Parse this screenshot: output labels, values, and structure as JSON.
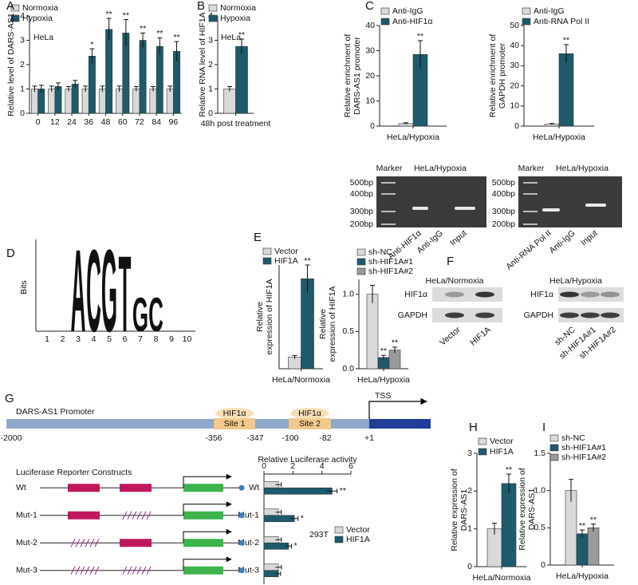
{
  "chart_data": [
    {
      "type": "bar",
      "panel": "A",
      "ylabel": [
        "Relative level of DARS-AS1"
      ],
      "note": "HeLa",
      "categories": [
        "0",
        "12",
        "24",
        "36",
        "48",
        "60",
        "72",
        "84",
        "96"
      ],
      "series": [
        {
          "name": "Normoxia",
          "color": "#d9d9d9",
          "values": [
            1,
            1,
            1,
            1,
            1,
            1,
            1,
            1,
            1
          ],
          "errors": [
            0.12,
            0.12,
            0.1,
            0.12,
            0.12,
            0.12,
            0.1,
            0.1,
            0.12
          ]
        },
        {
          "name": "Hypoxia",
          "color": "#1d5a6c",
          "values": [
            1.0,
            1.1,
            1.2,
            2.35,
            3.45,
            3.3,
            3.0,
            2.75,
            2.55
          ],
          "errors": [
            0.15,
            0.15,
            0.15,
            0.3,
            0.45,
            0.55,
            0.3,
            0.35,
            0.4
          ],
          "annotations": [
            null,
            null,
            null,
            "*",
            "**",
            "**",
            "**",
            "**",
            "**"
          ]
        }
      ],
      "ylim": [
        0,
        4
      ],
      "yticks": [
        0,
        1,
        2,
        3,
        4
      ]
    },
    {
      "type": "bar",
      "panel": "B",
      "ylabel": [
        "Relative RNA level of HIF1A"
      ],
      "note": "HeLa",
      "xlabel": "48h post treatment",
      "categories": [
        null
      ],
      "series": [
        {
          "name": "Normoxia",
          "color": "#d9d9d9",
          "values": [
            1.0
          ],
          "errors": [
            0.1
          ]
        },
        {
          "name": "Hypoxia",
          "color": "#1d5a6c",
          "values": [
            2.75
          ],
          "errors": [
            0.3
          ],
          "annotations": [
            "**"
          ]
        }
      ],
      "ylim": [
        0,
        4
      ],
      "yticks": [
        0,
        1,
        2,
        3,
        4
      ]
    },
    {
      "type": "bar",
      "panel": "C",
      "ylabel": [
        "Relative enrichment of",
        "DARS-AS1 promoter"
      ],
      "xlabel": "HeLa/Hypoxia",
      "categories": [
        null
      ],
      "series": [
        {
          "name": "Anti-IgG",
          "color": "#d9d9d9",
          "values": [
            1
          ],
          "errors": [
            0.3
          ]
        },
        {
          "name": "Anti-HIF1α",
          "color": "#1d5a6c",
          "values": [
            28.5
          ],
          "errors": [
            5.5
          ],
          "annotations": [
            "**"
          ]
        }
      ],
      "ylim": [
        0,
        40
      ],
      "yticks": [
        0,
        10,
        20,
        30,
        40
      ]
    },
    {
      "type": "bar",
      "ylabel": [
        "Relative enrichment of",
        "GAPDH promoter"
      ],
      "xlabel": "HeLa/Hypoxia",
      "categories": [
        null
      ],
      "series": [
        {
          "name": "Anti-IgG",
          "color": "#d9d9d9",
          "values": [
            1
          ],
          "errors": [
            0.3
          ]
        },
        {
          "name": "Anti-RNA Pol II",
          "color": "#1d5a6c",
          "values": [
            36
          ],
          "errors": [
            4.5
          ],
          "annotations": [
            "**"
          ]
        }
      ],
      "ylim": [
        0,
        50
      ],
      "yticks": [
        0,
        10,
        20,
        30,
        40,
        50
      ]
    },
    {
      "type": "bar",
      "panel": "E",
      "ylabel": [
        "Relative",
        "expression of HIF1A"
      ],
      "xlabel": "HeLa/Normoxia",
      "categories": [
        null
      ],
      "series": [
        {
          "name": "Vector",
          "color": "#d9d9d9",
          "values": [
            1
          ],
          "errors": [
            0.15
          ]
        },
        {
          "name": "HIF1A",
          "color": "#1d5a6c",
          "values": [
            7.8
          ],
          "errors": [
            1.2
          ],
          "annotations": [
            "**"
          ]
        }
      ],
      "ylim": [
        0,
        9
      ]
    },
    {
      "type": "bar",
      "ylabel": [
        "Relative",
        "expression of HIF1A"
      ],
      "xlabel": "HeLa/Hypoxia",
      "categories": [
        null
      ],
      "series": [
        {
          "name": "sh-NC",
          "color": "#d9d9d9",
          "values": [
            1
          ],
          "errors": [
            0.12
          ]
        },
        {
          "name": "sh-HIF1A#1",
          "color": "#1d5a6c",
          "values": [
            0.15
          ],
          "errors": [
            0.03
          ],
          "annotations": [
            "**"
          ]
        },
        {
          "name": "sh-HIF1A#2",
          "color": "#9a9a9a",
          "values": [
            0.25
          ],
          "errors": [
            0.04
          ],
          "annotations": [
            "**"
          ]
        }
      ],
      "ylim": [
        0,
        1.2
      ],
      "yticks": [
        {
          "value": 0,
          "label": "0.0"
        },
        0.5,
        {
          "value": 1,
          "label": "1.0"
        }
      ]
    },
    {
      "type": "hbar",
      "title": "Relative Luciferase activity",
      "note": "293T",
      "categories": [
        "Wt",
        "Mut-1",
        "Mut-2",
        "Mut-3"
      ],
      "series": [
        {
          "name": "Vector",
          "color": "#d9d9d9",
          "values": [
            1,
            1,
            1,
            1
          ],
          "errors": [
            0.2,
            0.2,
            0.2,
            0.2
          ]
        },
        {
          "name": "HIF1A",
          "color": "#1d5a6c",
          "values": [
            4.7,
            2.1,
            1.7,
            1.0
          ],
          "errors": [
            0.35,
            0.25,
            0.2,
            0.15
          ],
          "annotations": [
            "**",
            "*",
            "*",
            null
          ]
        }
      ],
      "xlim": [
        0,
        6
      ],
      "xticks": [
        0,
        2,
        4,
        6
      ]
    },
    {
      "type": "bar",
      "panel": "H",
      "ylabel": [
        "Relative expression of",
        "DARS-AS1"
      ],
      "xlabel": "HeLa/Normoxia",
      "categories": [
        null
      ],
      "series": [
        {
          "name": "Vector",
          "color": "#d9d9d9",
          "values": [
            1
          ],
          "errors": [
            0.15
          ]
        },
        {
          "name": "HIF1A",
          "color": "#1d5a6c",
          "values": [
            2.2
          ],
          "errors": [
            0.25
          ],
          "annotations": [
            "**"
          ]
        }
      ],
      "ylim": [
        0,
        3
      ],
      "yticks": [
        0,
        1,
        2,
        3
      ]
    },
    {
      "type": "bar",
      "panel": "I",
      "ylabel": [
        "Relative expression of",
        "DARS-AS1"
      ],
      "xlabel": "HeLa/Hypoxia",
      "categories": [
        null
      ],
      "series": [
        {
          "name": "sh-NC",
          "color": "#d9d9d9",
          "values": [
            1
          ],
          "errors": [
            0.15
          ]
        },
        {
          "name": "sh-HIF1A#1",
          "color": "#1d5a6c",
          "values": [
            0.42
          ],
          "errors": [
            0.05
          ],
          "annotations": [
            "**"
          ]
        },
        {
          "name": "sh-HIF1A#2",
          "color": "#9a9a9a",
          "values": [
            0.5
          ],
          "errors": [
            0.05
          ],
          "annotations": [
            "**"
          ]
        }
      ],
      "ylim": [
        0,
        1.5
      ],
      "yticks": [
        0,
        0.5,
        {
          "value": 1,
          "label": "1.0"
        },
        1.5
      ]
    }
  ],
  "gels": [
    {
      "marker": "Marker",
      "title": "HeLa/Hypoxia",
      "sizes": [
        "500bp",
        "400bp",
        "300bp",
        "200bp"
      ],
      "lanes": [
        "Anti-HIF1α",
        "Anti-IgG",
        "Input"
      ]
    },
    {
      "marker": "Marker",
      "title": "HeLa/Hypoxia",
      "sizes": [
        "500bp",
        "400bp",
        "300bp",
        "200bp"
      ],
      "lanes": [
        "Anti-RNA Pol II",
        "Anti-IgG",
        "Input"
      ]
    }
  ],
  "motif": {
    "panel": "D",
    "ylabel": "Bits",
    "letters": [
      "A",
      "C",
      "G",
      "T",
      "G",
      "C"
    ],
    "heights": [
      1.95,
      1.95,
      1.95,
      1.8,
      0.8,
      0.8
    ],
    "ylim": [
      0,
      2
    ],
    "positions": [
      1,
      2,
      3,
      4,
      5,
      6,
      7,
      8,
      9,
      10
    ]
  },
  "blots": {
    "panel": "F",
    "groups": [
      {
        "title": "HeLa/Normoxia",
        "rows": [
          "HIF1α",
          "GAPDH"
        ],
        "lanes": [
          "Vector",
          "HIF1A"
        ]
      },
      {
        "title": "HeLa/Hypoxia",
        "rows": [
          "HIF1α",
          "GAPDH"
        ],
        "lanes": [
          "sh-NC",
          "sh-HIF1A#1",
          "sh-HIF1A#2"
        ]
      }
    ]
  },
  "promoter": {
    "panel": "G",
    "name": "DARS-AS1 Promoter",
    "sites": [
      [
        "HIF1α",
        "Site 1"
      ],
      [
        "HIF1α",
        "Site 2"
      ]
    ],
    "tss": "TSS",
    "positions": [
      "-2000",
      "-356",
      "-347",
      "-100",
      "-82",
      "+1"
    ]
  },
  "constructs": {
    "title": "Luciferase Reporter Constructs",
    "names": [
      "Wt",
      "Mut-1",
      "Mut-2",
      "Mut-3"
    ]
  }
}
